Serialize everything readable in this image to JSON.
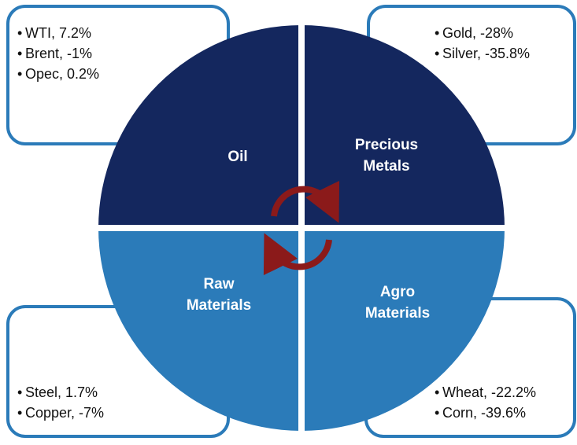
{
  "quadrants": [
    {
      "label": [
        "Oil"
      ],
      "items": [
        "WTI, 7.2%",
        "Brent, -1%",
        "Opec, 0.2%"
      ]
    },
    {
      "label": [
        "Precious",
        "Metals"
      ],
      "items": [
        "Gold, -28%",
        "Silver, -35.8%"
      ]
    },
    {
      "label": [
        "Raw",
        "Materials"
      ],
      "items": [
        "Steel, 1.7%",
        "Copper, -7%"
      ]
    },
    {
      "label": [
        "Agro",
        "Materials"
      ],
      "items": [
        "Wheat, -22.2%",
        "Corn, -39.6%"
      ]
    }
  ]
}
